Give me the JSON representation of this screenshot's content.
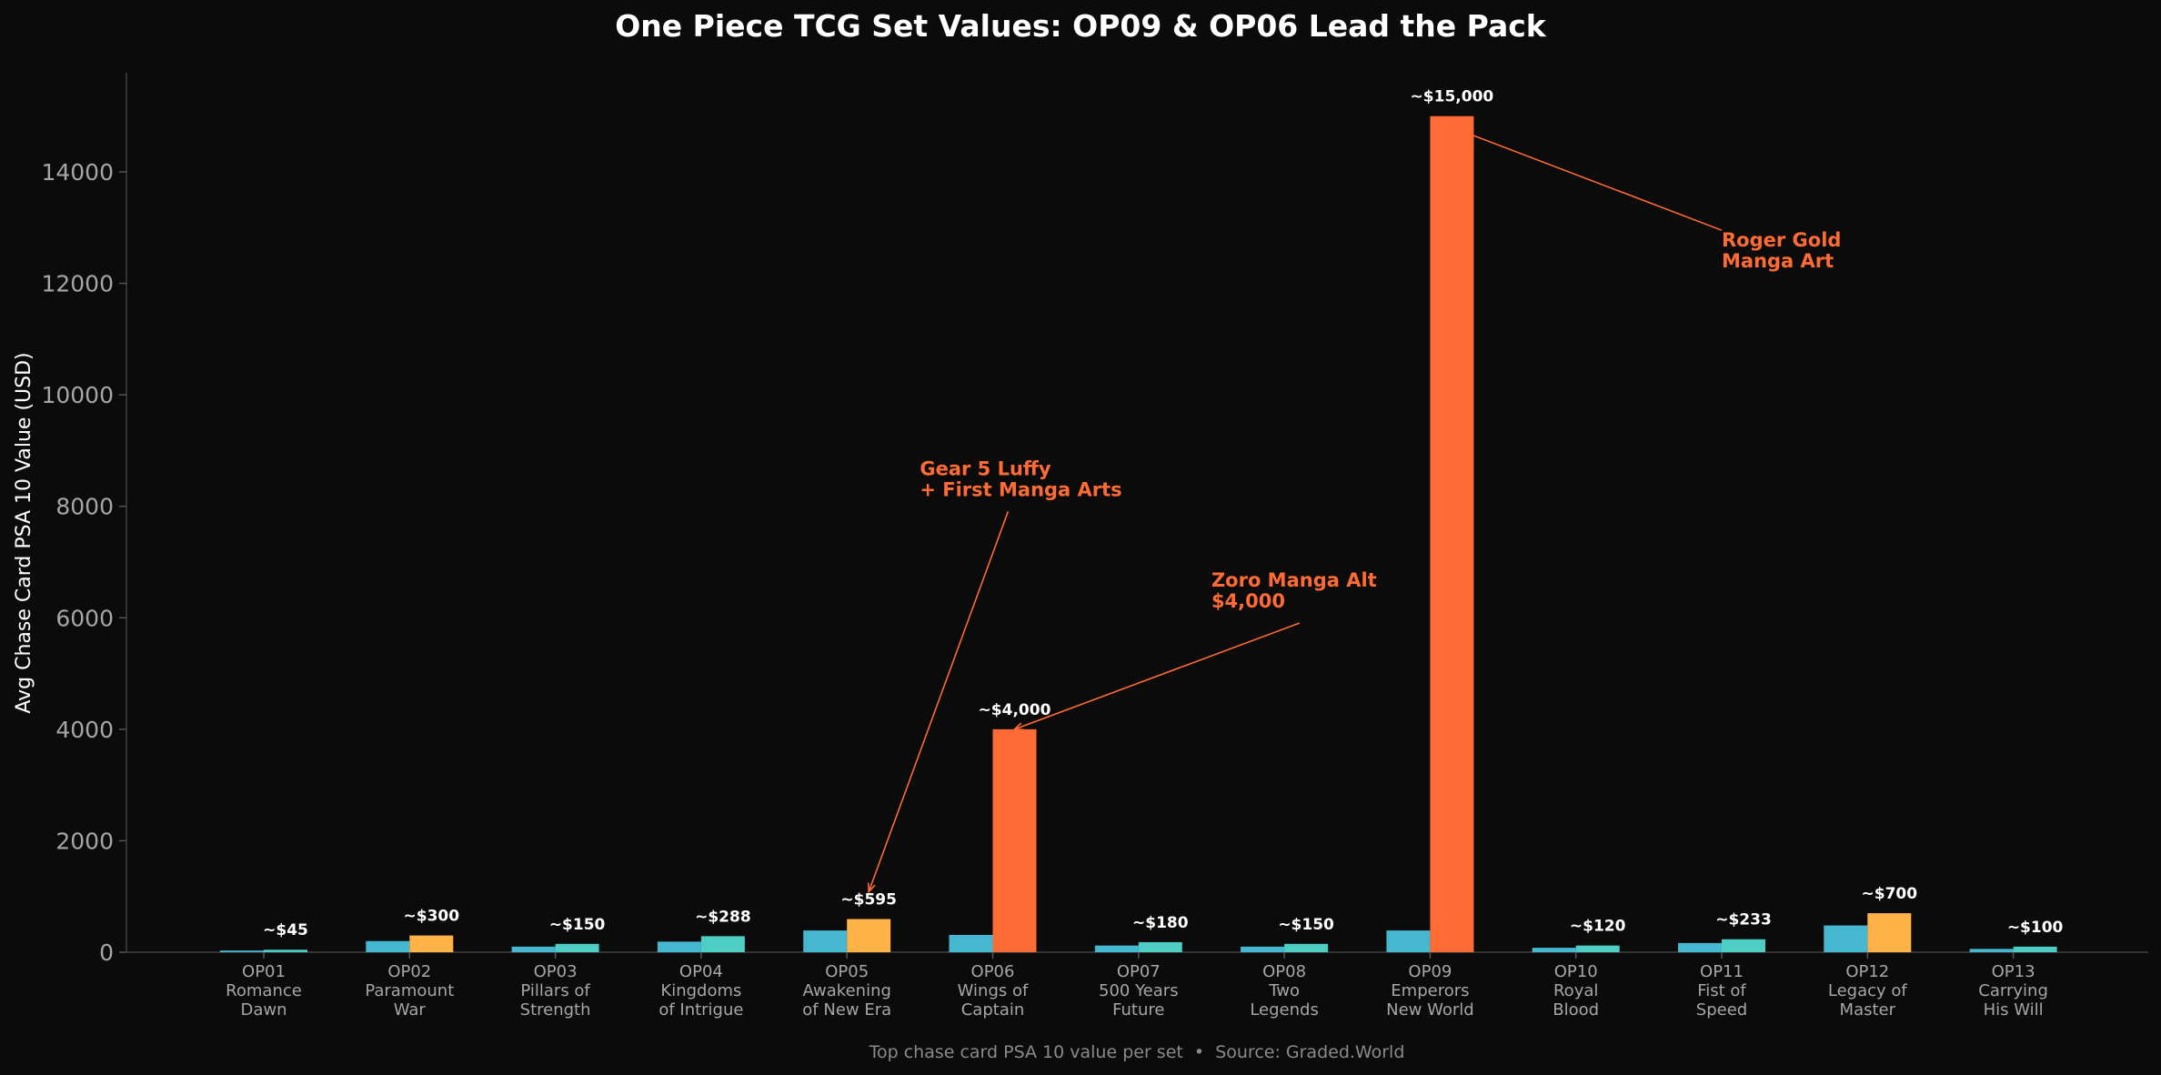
{
  "chart_data": {
    "type": "bar",
    "title": "One Piece TCG Set Values: OP09 & OP06 Lead the Pack",
    "ylabel": "Avg Chase Card PSA 10 Value (USD)",
    "xlabel": "",
    "footer": "Top chase card PSA 10 value per set  •  Source: Graded.World",
    "ylim": [
      0,
      15700
    ],
    "yticks": [
      "0",
      "2000",
      "4000",
      "6000",
      "8000",
      "10000",
      "12000",
      "14000"
    ],
    "ytick_values": [
      0,
      2000,
      4000,
      6000,
      8000,
      10000,
      12000,
      14000
    ],
    "grid": false,
    "categories": [
      [
        "OP01",
        "Romance",
        "Dawn"
      ],
      [
        "OP02",
        "Paramount",
        "War"
      ],
      [
        "OP03",
        "Pillars of",
        "Strength"
      ],
      [
        "OP04",
        "Kingdoms",
        "of Intrigue"
      ],
      [
        "OP05",
        "Awakening",
        "of New Era"
      ],
      [
        "OP06",
        "Wings of",
        "Captain"
      ],
      [
        "OP07",
        "500 Years",
        "Future"
      ],
      [
        "OP08",
        "Two",
        "Legends"
      ],
      [
        "OP09",
        "Emperors",
        "New World"
      ],
      [
        "OP10",
        "Royal",
        "Blood"
      ],
      [
        "OP11",
        "Fist of",
        "Speed"
      ],
      [
        "OP12",
        "Legacy of",
        "Master"
      ],
      [
        "OP13",
        "Carrying",
        "His Will"
      ]
    ],
    "series": [
      {
        "values": [
          30,
          200,
          100,
          190,
          390,
          310,
          120,
          100,
          390,
          80,
          165,
          480,
          60
        ],
        "colors": [
          "#45b7d1",
          "#45b7d1",
          "#45b7d1",
          "#45b7d1",
          "#45b7d1",
          "#45b7d1",
          "#45b7d1",
          "#45b7d1",
          "#45b7d1",
          "#45b7d1",
          "#45b7d1",
          "#45b7d1",
          "#45b7d1"
        ]
      },
      {
        "values": [
          45,
          300,
          150,
          288,
          595,
          4000,
          180,
          150,
          15000,
          120,
          233,
          700,
          100
        ],
        "colors": [
          "#4ecdc4",
          "#ffb347",
          "#4ecdc4",
          "#4ecdc4",
          "#ffb347",
          "#ff6b35",
          "#4ecdc4",
          "#4ecdc4",
          "#ff6b35",
          "#4ecdc4",
          "#4ecdc4",
          "#ffb347",
          "#4ecdc4"
        ],
        "labels": [
          "~$45",
          "~$300",
          "~$150",
          "~$288",
          "~$595",
          "~$4,000",
          "~$180",
          "~$150",
          "~$15,000",
          "~$120",
          "~$233",
          "~$700",
          "~$100"
        ]
      }
    ],
    "annotations": [
      {
        "lines": [
          "Gear 5 Luffy",
          "+ First Manga Arts"
        ],
        "target_index": 4,
        "target_value": 595,
        "text_index": 4.5,
        "text_value": 8200
      },
      {
        "lines": [
          "Zoro Manga Alt",
          "$4,000"
        ],
        "target_index": 5,
        "target_value": 4000,
        "text_index": 6.5,
        "text_value": 6200
      },
      {
        "lines": [
          "Roger Gold",
          "Manga Art"
        ],
        "target_index": 8,
        "target_value": 14800,
        "text_index": 10.0,
        "text_value": 12300
      }
    ],
    "colors": {
      "background": "#0b0b0b",
      "axis": "#333333",
      "annotation": "#ff6b35"
    }
  }
}
